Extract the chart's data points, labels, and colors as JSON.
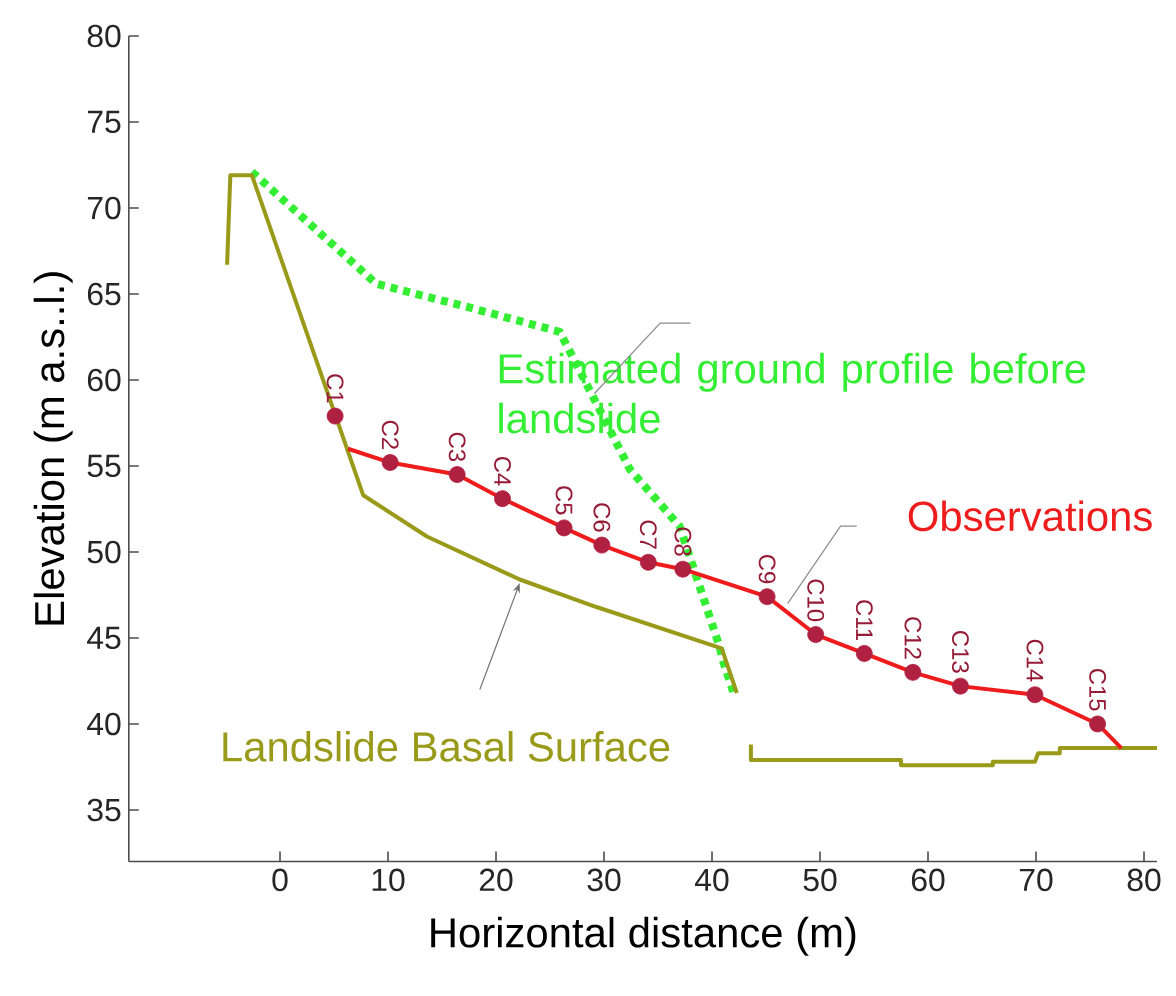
{
  "chart_data": {
    "type": "line",
    "xlabel": "Horizontal distance  (m)",
    "ylabel": "Elevation (m a.s..l.)",
    "xlim": [
      -14,
      81.2
    ],
    "ylim": [
      32,
      80
    ],
    "xticks": [
      0,
      10,
      20,
      30,
      40,
      50,
      60,
      70,
      80
    ],
    "yticks": [
      35,
      40,
      45,
      50,
      55,
      60,
      65,
      70,
      75,
      80
    ],
    "series": [
      {
        "name": "Estimated ground profile before landslide",
        "line_style": "dotted",
        "color": "#33ee33",
        "x": [
          -2.6,
          8.9,
          17.6,
          25.9,
          29.0,
          32.4,
          37.0,
          40.7,
          41.0,
          42.0
        ],
        "values": [
          72.1,
          65.6,
          64.2,
          62.8,
          59.0,
          54.8,
          51.5,
          44.5,
          43.7,
          41.8
        ]
      },
      {
        "name": "Landslide Basal Surface",
        "line_style": "solid",
        "color": "#9a9a1a",
        "x": [
          -4.9,
          -4.6,
          -2.6,
          7.7,
          13.6,
          22.2,
          29.3,
          40.4,
          40.9,
          42.3,
          43.0,
          43.6,
          43.6,
          57.5,
          57.5,
          66.0,
          66.0,
          69.9,
          70.2,
          72.2,
          72.2,
          81.2
        ],
        "values": [
          66.7,
          71.9,
          71.9,
          53.3,
          50.9,
          48.4,
          46.8,
          44.5,
          44.4,
          41.8,
          null,
          38.8,
          37.9,
          37.9,
          37.6,
          37.6,
          37.8,
          37.8,
          38.3,
          38.3,
          38.6,
          38.6
        ]
      },
      {
        "name": "Observations",
        "line_style": "solid",
        "color": "#ee1c1c",
        "x": [
          6.3,
          10.2,
          16.4,
          20.6,
          26.3,
          29.8,
          34.1,
          37.3,
          45.1,
          49.6,
          54.1,
          58.6,
          63.0,
          69.9,
          75.7,
          77.9
        ],
        "values": [
          56.0,
          55.2,
          54.5,
          53.1,
          51.4,
          50.4,
          49.4,
          49.0,
          47.4,
          45.2,
          44.1,
          43.0,
          42.2,
          41.7,
          40.0,
          38.6
        ]
      },
      {
        "type": "scatter",
        "marker": "circle",
        "color": "#b02040",
        "x": [
          5.1,
          10.2,
          16.4,
          20.6,
          26.3,
          29.8,
          34.1,
          37.3,
          45.1,
          49.6,
          54.1,
          58.6,
          63.0,
          69.9,
          75.7
        ],
        "values": [
          57.9,
          55.2,
          54.5,
          53.1,
          51.4,
          50.4,
          49.4,
          49.0,
          47.4,
          45.2,
          44.1,
          43.0,
          42.2,
          41.7,
          40.0
        ]
      }
    ],
    "annotations": [
      {
        "text": "C1",
        "x": 5.1,
        "y": 57.9
      },
      {
        "text": "C2",
        "x": 10.2,
        "y": 55.2
      },
      {
        "text": "C3",
        "x": 16.4,
        "y": 54.5
      },
      {
        "text": "C4",
        "x": 20.6,
        "y": 53.1
      },
      {
        "text": "C5",
        "x": 26.3,
        "y": 51.4
      },
      {
        "text": "C6",
        "x": 29.8,
        "y": 50.4
      },
      {
        "text": "C7",
        "x": 34.1,
        "y": 49.4
      },
      {
        "text": "C8",
        "x": 37.3,
        "y": 49.0
      },
      {
        "text": "C9",
        "x": 45.1,
        "y": 47.4
      },
      {
        "text": "C10",
        "x": 49.6,
        "y": 45.2
      },
      {
        "text": "C11",
        "x": 54.1,
        "y": 44.1
      },
      {
        "text": "C12",
        "x": 58.6,
        "y": 43.0
      },
      {
        "text": "C13",
        "x": 63.0,
        "y": 42.2
      },
      {
        "text": "C14",
        "x": 69.9,
        "y": 41.7
      },
      {
        "text": "C15",
        "x": 75.7,
        "y": 40.0
      }
    ]
  }
}
